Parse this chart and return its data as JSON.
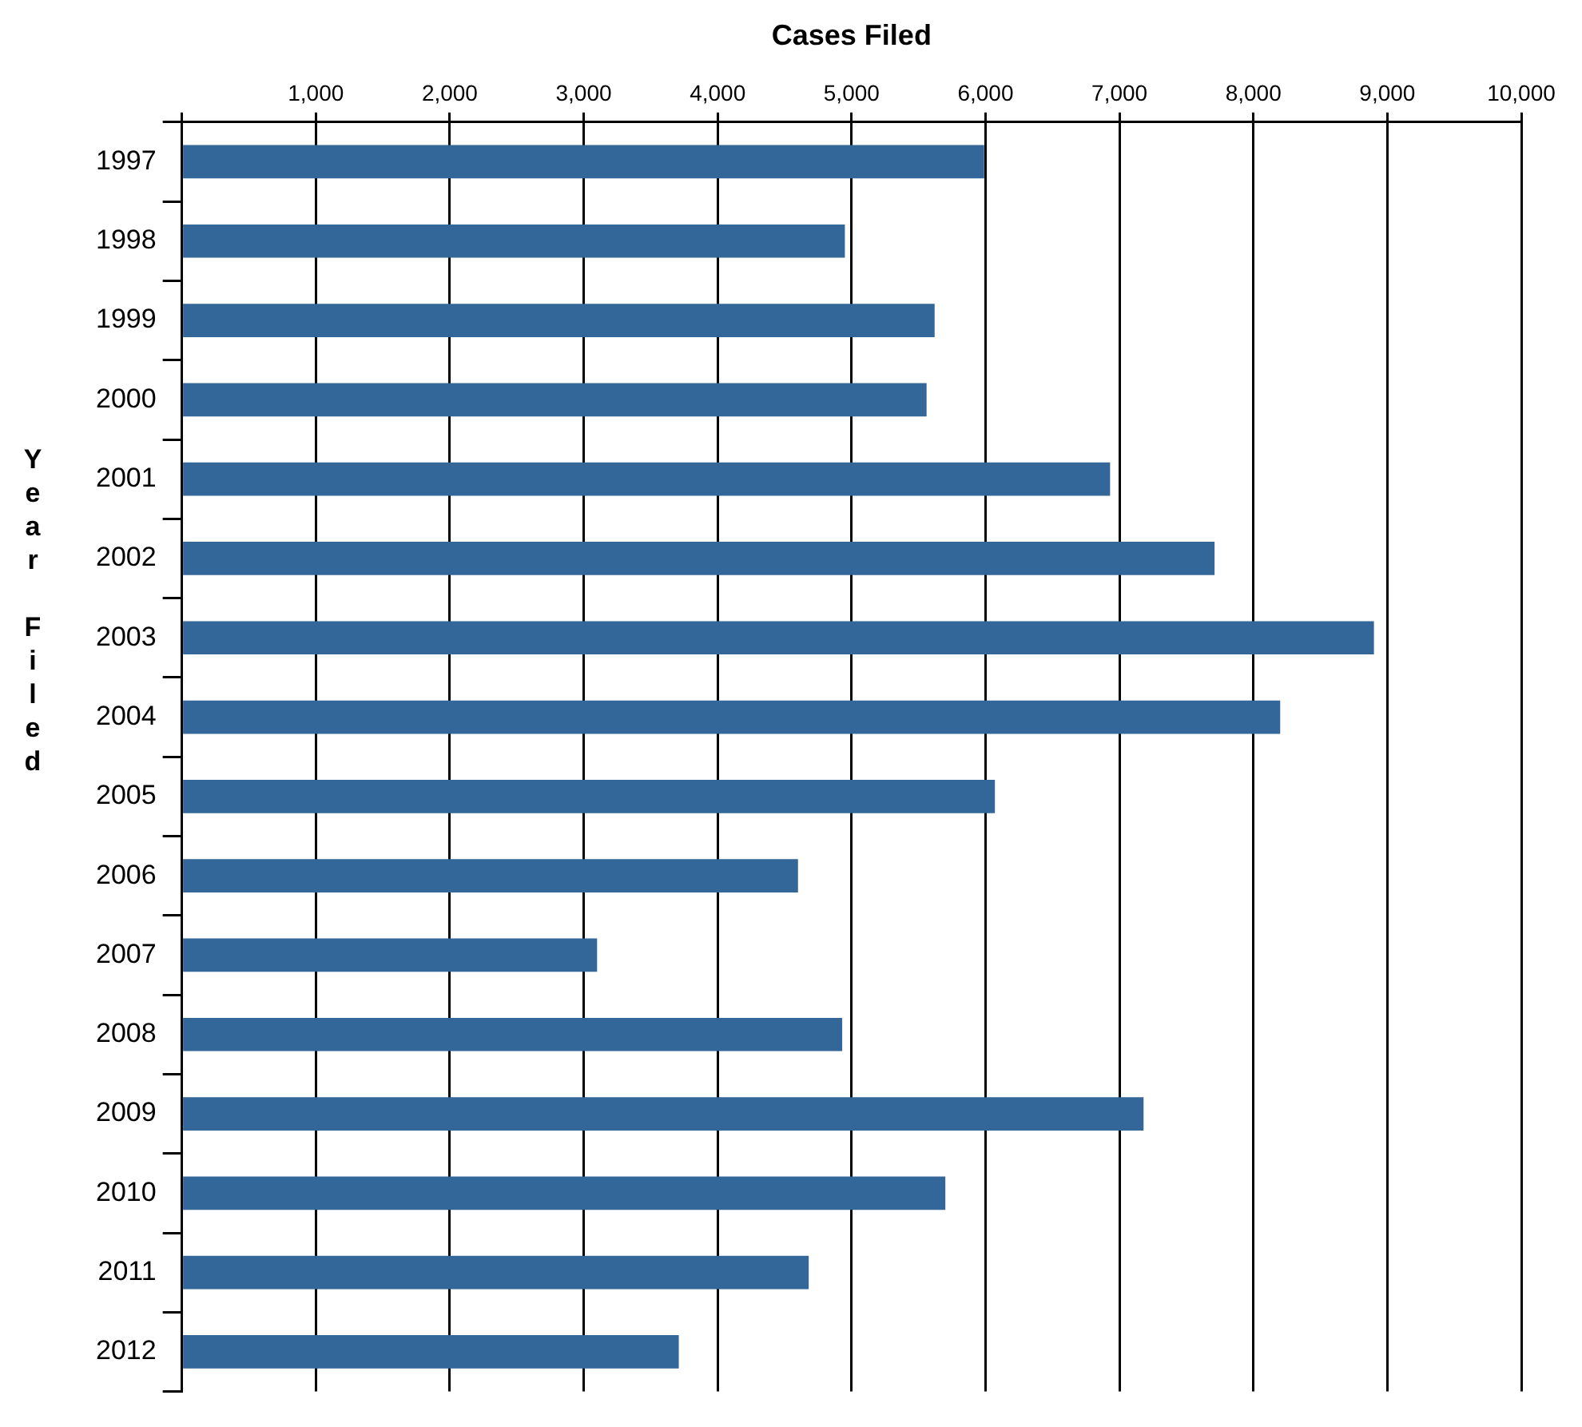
{
  "chart_data": {
    "type": "bar",
    "orientation": "horizontal",
    "xlabel": "Cases Filed",
    "ylabel": "Year Filed",
    "categories": [
      "1997",
      "1998",
      "1999",
      "2000",
      "2001",
      "2002",
      "2003",
      "2004",
      "2005",
      "2006",
      "2007",
      "2008",
      "2009",
      "2010",
      "2011",
      "2012"
    ],
    "series": [
      {
        "color": "#336699",
        "values": [
          5990,
          4950,
          5620,
          5560,
          6930,
          7710,
          8900,
          8200,
          6070,
          4600,
          3100,
          4930,
          7180,
          5700,
          4680,
          3710
        ]
      }
    ],
    "xlim": [
      0,
      10000
    ],
    "xticks": [
      {
        "value": 0,
        "label": null
      },
      {
        "value": 1000,
        "label": "1,000"
      },
      {
        "value": 2000,
        "label": "2,000"
      },
      {
        "value": 3000,
        "label": "3,000"
      },
      {
        "value": 4000,
        "label": "4,000"
      },
      {
        "value": 5000,
        "label": "5,000"
      },
      {
        "value": 6000,
        "label": "6,000"
      },
      {
        "value": 7000,
        "label": "7,000"
      },
      {
        "value": 8000,
        "label": "8,000"
      },
      {
        "value": 9000,
        "label": "9,000"
      },
      {
        "value": 10000,
        "label": "10,000"
      }
    ],
    "grid": "x",
    "legend": false
  }
}
